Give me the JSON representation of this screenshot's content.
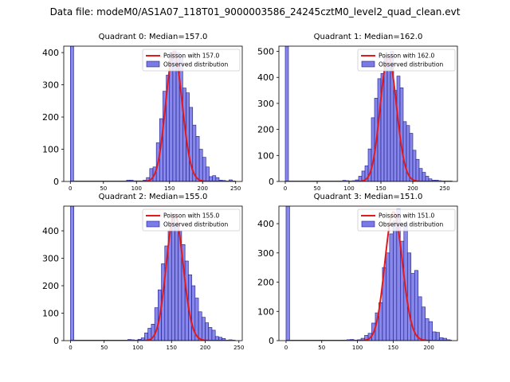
{
  "suptitle": "Data file: modeM0/AS1A07_118T01_9000003586_24245cztM0_level2_quad_clean.evt",
  "colors": {
    "bar_fill": "#7b7be8",
    "bar_edge": "#1a1a8c",
    "curve": "#e31a1c"
  },
  "chart_data": [
    {
      "type": "bar",
      "title": "Quadrant 0: Median=157.0",
      "xlim": [
        -10,
        260
      ],
      "ylim": [
        0,
        420
      ],
      "xticks": [
        0,
        50,
        100,
        150,
        200,
        250
      ],
      "yticks": [
        0,
        100,
        200,
        300,
        400
      ],
      "bin_width": 5,
      "bins": [
        [
          0,
          420
        ],
        [
          85,
          4
        ],
        [
          90,
          4
        ],
        [
          95,
          2
        ],
        [
          100,
          2
        ],
        [
          105,
          2
        ],
        [
          110,
          4
        ],
        [
          115,
          12
        ],
        [
          120,
          40
        ],
        [
          125,
          45
        ],
        [
          130,
          120
        ],
        [
          135,
          195
        ],
        [
          140,
          280
        ],
        [
          145,
          330
        ],
        [
          150,
          400
        ],
        [
          155,
          405
        ],
        [
          160,
          400
        ],
        [
          165,
          390
        ],
        [
          170,
          290
        ],
        [
          175,
          275
        ],
        [
          180,
          230
        ],
        [
          185,
          175
        ],
        [
          190,
          140
        ],
        [
          195,
          100
        ],
        [
          200,
          75
        ],
        [
          205,
          45
        ],
        [
          210,
          15
        ],
        [
          215,
          18
        ],
        [
          220,
          12
        ],
        [
          225,
          4
        ],
        [
          230,
          3
        ],
        [
          240,
          5
        ]
      ],
      "poisson_mean": 157,
      "curve_peak": 400,
      "curve_range": [
        0,
        250
      ],
      "legend": [
        "Poisson with 157.0",
        "Observed distribution"
      ]
    },
    {
      "type": "bar",
      "title": "Quadrant 1: Median=162.0",
      "xlim": [
        -10,
        270
      ],
      "ylim": [
        0,
        520
      ],
      "xticks": [
        0,
        50,
        100,
        150,
        200,
        250
      ],
      "yticks": [
        0,
        100,
        200,
        300,
        400,
        500
      ],
      "bin_width": 5,
      "bins": [
        [
          0,
          520
        ],
        [
          85,
          2
        ],
        [
          90,
          4
        ],
        [
          95,
          3
        ],
        [
          100,
          2
        ],
        [
          105,
          3
        ],
        [
          110,
          6
        ],
        [
          115,
          20
        ],
        [
          120,
          40
        ],
        [
          125,
          60
        ],
        [
          130,
          125
        ],
        [
          135,
          245
        ],
        [
          140,
          320
        ],
        [
          145,
          395
        ],
        [
          150,
          415
        ],
        [
          155,
          480
        ],
        [
          160,
          470
        ],
        [
          165,
          500
        ],
        [
          170,
          350
        ],
        [
          175,
          405
        ],
        [
          180,
          360
        ],
        [
          185,
          230
        ],
        [
          190,
          215
        ],
        [
          195,
          185
        ],
        [
          200,
          120
        ],
        [
          205,
          85
        ],
        [
          210,
          50
        ],
        [
          215,
          35
        ],
        [
          220,
          20
        ],
        [
          225,
          10
        ],
        [
          230,
          5
        ],
        [
          235,
          5
        ],
        [
          240,
          3
        ]
      ],
      "poisson_mean": 162,
      "curve_peak": 480,
      "curve_range": [
        0,
        262
      ],
      "legend": [
        "Poisson with 162.0",
        "Observed distribution"
      ]
    },
    {
      "type": "bar",
      "title": "Quadrant 2: Median=155.0",
      "xlim": [
        -10,
        255
      ],
      "ylim": [
        0,
        490
      ],
      "xticks": [
        0,
        50,
        100,
        150,
        200,
        250
      ],
      "yticks": [
        0,
        100,
        200,
        300,
        400
      ],
      "bin_width": 5,
      "bins": [
        [
          0,
          490
        ],
        [
          80,
          2
        ],
        [
          85,
          4
        ],
        [
          90,
          3
        ],
        [
          95,
          2
        ],
        [
          100,
          5
        ],
        [
          105,
          10
        ],
        [
          110,
          28
        ],
        [
          115,
          45
        ],
        [
          120,
          60
        ],
        [
          125,
          120
        ],
        [
          130,
          185
        ],
        [
          135,
          280
        ],
        [
          140,
          345
        ],
        [
          145,
          400
        ],
        [
          150,
          460
        ],
        [
          155,
          425
        ],
        [
          160,
          400
        ],
        [
          165,
          350
        ],
        [
          170,
          290
        ],
        [
          175,
          240
        ],
        [
          180,
          200
        ],
        [
          185,
          155
        ],
        [
          190,
          105
        ],
        [
          195,
          85
        ],
        [
          200,
          65
        ],
        [
          205,
          48
        ],
        [
          210,
          38
        ],
        [
          215,
          15
        ],
        [
          220,
          12
        ],
        [
          225,
          8
        ],
        [
          235,
          3
        ]
      ],
      "poisson_mean": 155,
      "curve_peak": 460,
      "curve_range": [
        0,
        245
      ],
      "legend": [
        "Poisson with 155.0",
        "Observed distribution"
      ]
    },
    {
      "type": "bar",
      "title": "Quadrant 3: Median=151.0",
      "xlim": [
        -10,
        240
      ],
      "ylim": [
        0,
        460
      ],
      "xticks": [
        0,
        50,
        100,
        150,
        200
      ],
      "yticks": [
        0,
        100,
        200,
        300,
        400
      ],
      "bin_width": 5,
      "bins": [
        [
          0,
          460
        ],
        [
          80,
          2
        ],
        [
          85,
          3
        ],
        [
          90,
          4
        ],
        [
          95,
          2
        ],
        [
          100,
          3
        ],
        [
          105,
          8
        ],
        [
          110,
          18
        ],
        [
          115,
          25
        ],
        [
          120,
          60
        ],
        [
          125,
          95
        ],
        [
          130,
          130
        ],
        [
          135,
          250
        ],
        [
          140,
          300
        ],
        [
          145,
          365
        ],
        [
          150,
          410
        ],
        [
          155,
          450
        ],
        [
          160,
          340
        ],
        [
          165,
          400
        ],
        [
          170,
          300
        ],
        [
          175,
          230
        ],
        [
          180,
          240
        ],
        [
          185,
          150
        ],
        [
          190,
          115
        ],
        [
          195,
          75
        ],
        [
          200,
          65
        ],
        [
          205,
          30
        ],
        [
          210,
          28
        ],
        [
          215,
          10
        ],
        [
          220,
          8
        ],
        [
          225,
          3
        ]
      ],
      "poisson_mean": 151,
      "curve_peak": 440,
      "curve_range": [
        0,
        232
      ],
      "legend": [
        "Poisson with 151.0",
        "Observed distribution"
      ]
    }
  ]
}
